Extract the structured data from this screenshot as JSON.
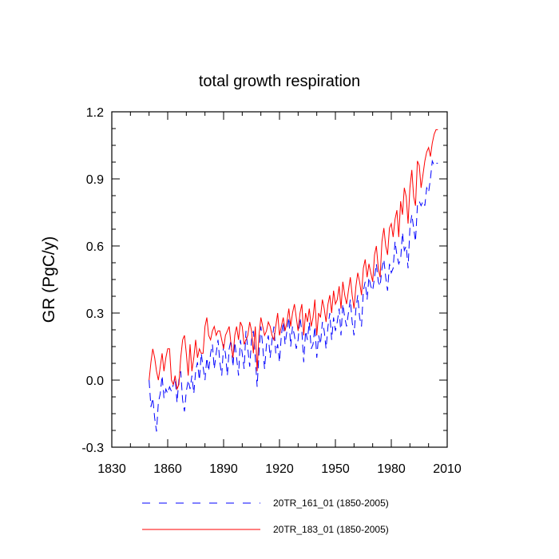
{
  "chart_data": {
    "type": "line",
    "title": "total growth respiration",
    "xlabel": "",
    "ylabel": "GR  (PgC/y)",
    "xlim": [
      1830,
      2010
    ],
    "ylim": [
      -0.3,
      1.2
    ],
    "x_ticks": [
      1830,
      1860,
      1890,
      1920,
      1950,
      1980,
      2010
    ],
    "y_ticks": [
      -0.3,
      0.0,
      0.3,
      0.6,
      0.9,
      1.2
    ],
    "x_tick_labels": [
      "1830",
      "1860",
      "1890",
      "1920",
      "1950",
      "1980",
      "2010"
    ],
    "y_tick_labels": [
      "-0.3",
      "0.0",
      "0.3",
      "0.6",
      "0.9",
      "1.2"
    ],
    "grid": false,
    "legend_position": "bottom",
    "x": [
      1850,
      1851,
      1852,
      1853,
      1854,
      1855,
      1856,
      1857,
      1858,
      1859,
      1860,
      1861,
      1862,
      1863,
      1864,
      1865,
      1866,
      1867,
      1868,
      1869,
      1870,
      1871,
      1872,
      1873,
      1874,
      1875,
      1876,
      1877,
      1878,
      1879,
      1880,
      1881,
      1882,
      1883,
      1884,
      1885,
      1886,
      1887,
      1888,
      1889,
      1890,
      1891,
      1892,
      1893,
      1894,
      1895,
      1896,
      1897,
      1898,
      1899,
      1900,
      1901,
      1902,
      1903,
      1904,
      1905,
      1906,
      1907,
      1908,
      1909,
      1910,
      1911,
      1912,
      1913,
      1914,
      1915,
      1916,
      1917,
      1918,
      1919,
      1920,
      1921,
      1922,
      1923,
      1924,
      1925,
      1926,
      1927,
      1928,
      1929,
      1930,
      1931,
      1932,
      1933,
      1934,
      1935,
      1936,
      1937,
      1938,
      1939,
      1940,
      1941,
      1942,
      1943,
      1944,
      1945,
      1946,
      1947,
      1948,
      1949,
      1950,
      1951,
      1952,
      1953,
      1954,
      1955,
      1956,
      1957,
      1958,
      1959,
      1960,
      1961,
      1962,
      1963,
      1964,
      1965,
      1966,
      1967,
      1968,
      1969,
      1970,
      1971,
      1972,
      1973,
      1974,
      1975,
      1976,
      1977,
      1978,
      1979,
      1980,
      1981,
      1982,
      1983,
      1984,
      1985,
      1986,
      1987,
      1988,
      1989,
      1990,
      1991,
      1992,
      1993,
      1994,
      1995,
      1996,
      1997,
      1998,
      1999,
      2000,
      2001,
      2002,
      2003,
      2004,
      2005
    ],
    "series": [
      {
        "name": "20TR_161_01 (1850-2005)",
        "color": "#0000ff",
        "dash": "dashed",
        "values": [
          0.0,
          -0.12,
          -0.08,
          -0.17,
          -0.23,
          -0.1,
          -0.06,
          0.02,
          -0.08,
          -0.04,
          -0.06,
          -0.03,
          -0.05,
          -0.02,
          0.01,
          -0.1,
          0.0,
          0.04,
          -0.09,
          -0.14,
          -0.05,
          0.0,
          -0.04,
          0.02,
          -0.06,
          0.04,
          0.08,
          0.0,
          0.12,
          0.06,
          0.0,
          0.1,
          0.04,
          0.12,
          0.16,
          0.05,
          0.12,
          0.18,
          0.08,
          0.02,
          0.16,
          0.12,
          0.02,
          0.14,
          0.18,
          0.06,
          0.17,
          0.1,
          0.02,
          0.18,
          0.12,
          0.05,
          0.22,
          0.14,
          0.06,
          0.18,
          0.22,
          0.1,
          -0.03,
          0.12,
          0.24,
          0.15,
          0.05,
          0.16,
          0.2,
          0.1,
          0.18,
          0.24,
          0.12,
          0.16,
          0.08,
          0.2,
          0.26,
          0.16,
          0.22,
          0.28,
          0.15,
          0.24,
          0.2,
          0.14,
          0.18,
          0.28,
          0.22,
          0.08,
          0.22,
          0.18,
          0.26,
          0.14,
          0.16,
          0.24,
          0.1,
          0.2,
          0.16,
          0.26,
          0.22,
          0.14,
          0.24,
          0.3,
          0.18,
          0.28,
          0.22,
          0.26,
          0.32,
          0.2,
          0.34,
          0.28,
          0.24,
          0.3,
          0.36,
          0.26,
          0.2,
          0.32,
          0.38,
          0.28,
          0.24,
          0.4,
          0.44,
          0.36,
          0.46,
          0.42,
          0.4,
          0.46,
          0.52,
          0.44,
          0.42,
          0.5,
          0.54,
          0.46,
          0.4,
          0.52,
          0.48,
          0.5,
          0.62,
          0.56,
          0.52,
          0.54,
          0.66,
          0.58,
          0.6,
          0.5,
          0.68,
          0.74,
          0.68,
          0.62,
          0.78,
          0.8,
          0.78,
          0.8,
          0.78,
          0.86,
          0.84,
          0.9,
          0.98,
          0.96,
          0.97,
          0.97
        ]
      },
      {
        "name": "20TR_183_01 (1850-2005)",
        "color": "#ff0000",
        "dash": "solid",
        "values": [
          0.0,
          0.08,
          0.14,
          0.1,
          0.04,
          0.0,
          0.06,
          0.12,
          0.04,
          0.1,
          0.14,
          0.14,
          0.0,
          -0.02,
          0.02,
          -0.04,
          -0.02,
          0.1,
          0.18,
          0.2,
          0.12,
          0.02,
          0.16,
          0.04,
          0.1,
          0.18,
          0.1,
          0.14,
          0.12,
          0.12,
          0.24,
          0.28,
          0.2,
          0.18,
          0.22,
          0.24,
          0.2,
          0.22,
          0.22,
          0.18,
          0.14,
          0.2,
          0.22,
          0.24,
          0.16,
          0.1,
          0.2,
          0.24,
          0.18,
          0.26,
          0.24,
          0.16,
          0.18,
          0.2,
          0.26,
          0.22,
          0.12,
          0.24,
          0.04,
          0.2,
          0.28,
          0.24,
          0.2,
          0.22,
          0.26,
          0.24,
          0.2,
          0.18,
          0.24,
          0.3,
          0.2,
          0.24,
          0.28,
          0.22,
          0.26,
          0.32,
          0.24,
          0.3,
          0.34,
          0.28,
          0.22,
          0.3,
          0.34,
          0.2,
          0.3,
          0.26,
          0.32,
          0.24,
          0.28,
          0.36,
          0.2,
          0.3,
          0.28,
          0.36,
          0.32,
          0.26,
          0.34,
          0.38,
          0.3,
          0.4,
          0.34,
          0.36,
          0.42,
          0.32,
          0.44,
          0.38,
          0.34,
          0.4,
          0.46,
          0.38,
          0.32,
          0.42,
          0.48,
          0.44,
          0.38,
          0.5,
          0.54,
          0.46,
          0.52,
          0.48,
          0.44,
          0.56,
          0.6,
          0.5,
          0.46,
          0.62,
          0.68,
          0.6,
          0.56,
          0.68,
          0.7,
          0.64,
          0.72,
          0.76,
          0.64,
          0.8,
          0.74,
          0.86,
          0.82,
          0.7,
          0.86,
          0.94,
          0.82,
          0.78,
          0.98,
          0.96,
          0.86,
          0.92,
          0.98,
          1.02,
          1.04,
          1.0,
          1.06,
          1.1,
          1.12,
          1.12
        ]
      }
    ]
  }
}
